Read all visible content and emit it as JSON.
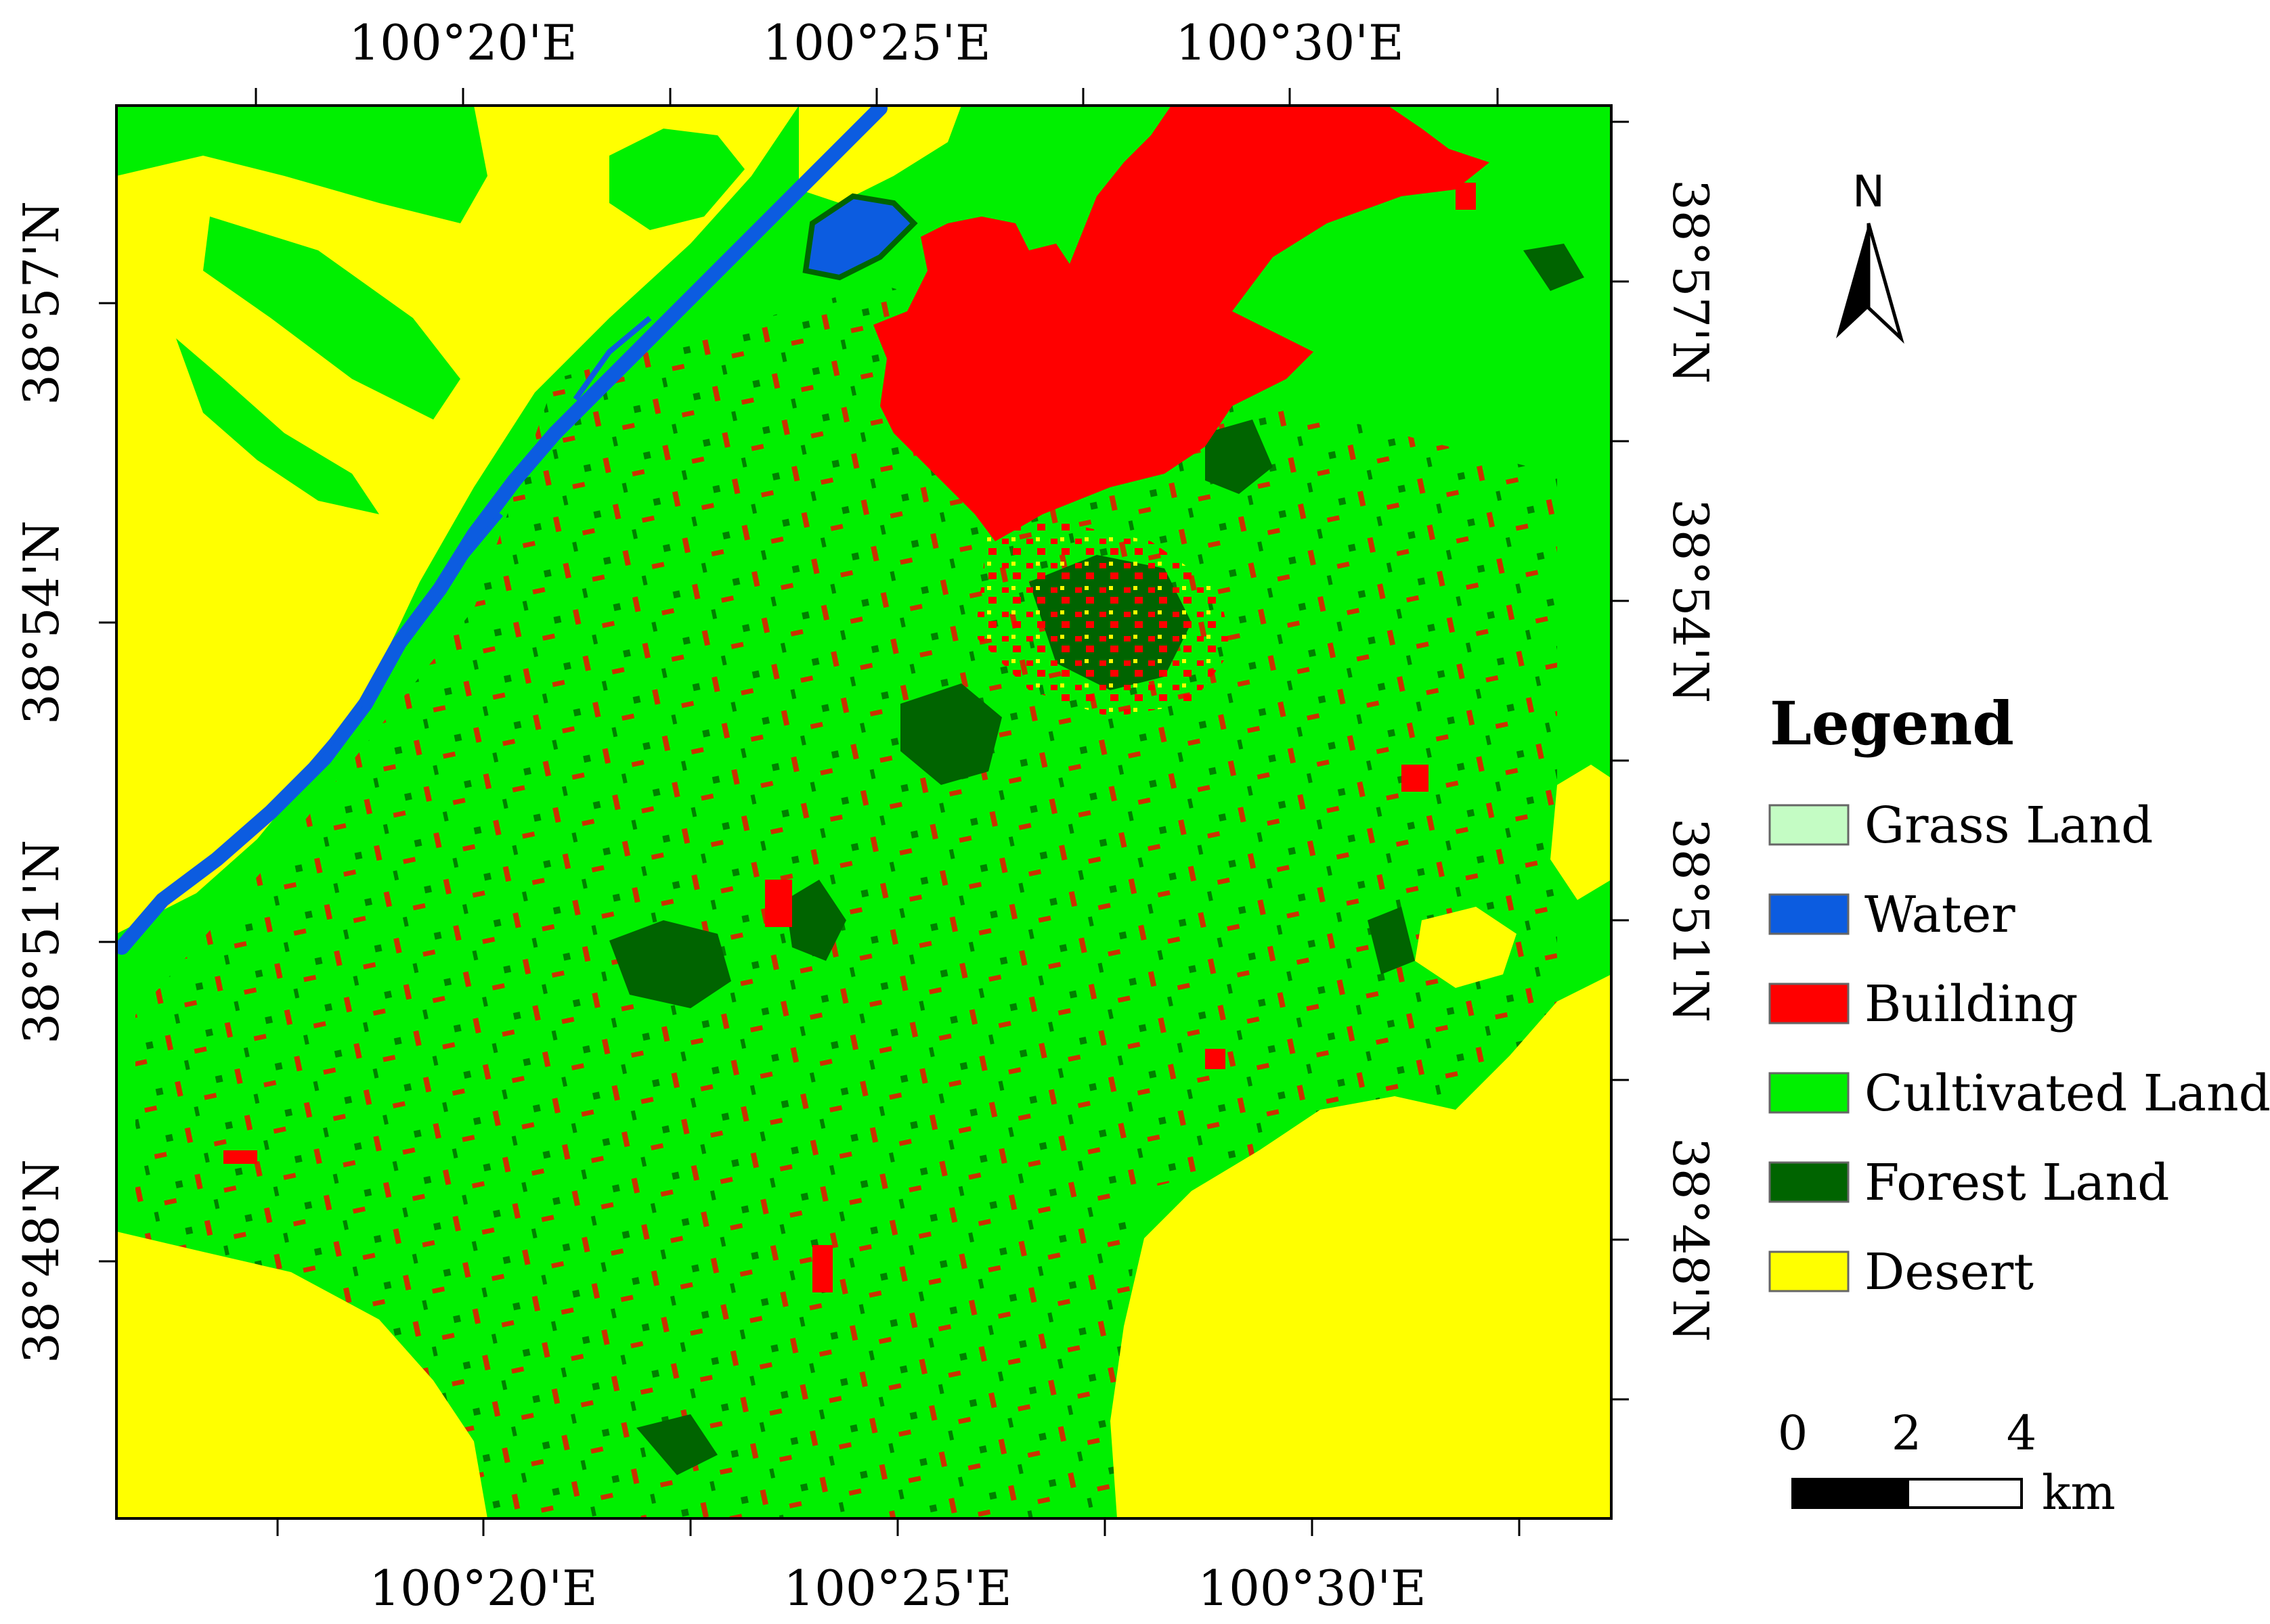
{
  "map": {
    "top_lon_ticks": [
      "100°20'E",
      "100°25'E",
      "100°30'E"
    ],
    "bottom_lon_ticks": [
      "100°20'E",
      "100°25'E",
      "100°30'E"
    ],
    "left_lat_ticks": [
      "38°57'N",
      "38°54'N",
      "38°51'N",
      "38°48'N"
    ],
    "right_lat_ticks": [
      "38°57'N",
      "38°54'N",
      "38°51'N",
      "38°48'N"
    ],
    "colors": {
      "grass_land": "#c4fcc4",
      "water": "#0c5ce0",
      "building": "#ff0000",
      "cultivated_land": "#00f000",
      "forest_land": "#006400",
      "desert": "#ffff00"
    }
  },
  "north_arrow": {
    "label": "N"
  },
  "legend": {
    "title": "Legend",
    "items": [
      {
        "label": "Grass Land",
        "color": "#c4fcc4"
      },
      {
        "label": "Water",
        "color": "#0c5ce0"
      },
      {
        "label": "Building",
        "color": "#ff0000"
      },
      {
        "label": "Cultivated Land",
        "color": "#00f000"
      },
      {
        "label": "Forest Land",
        "color": "#006400"
      },
      {
        "label": "Desert",
        "color": "#ffff00"
      }
    ]
  },
  "scale_bar": {
    "labels": [
      "0",
      "2",
      "4"
    ],
    "unit": "km"
  }
}
